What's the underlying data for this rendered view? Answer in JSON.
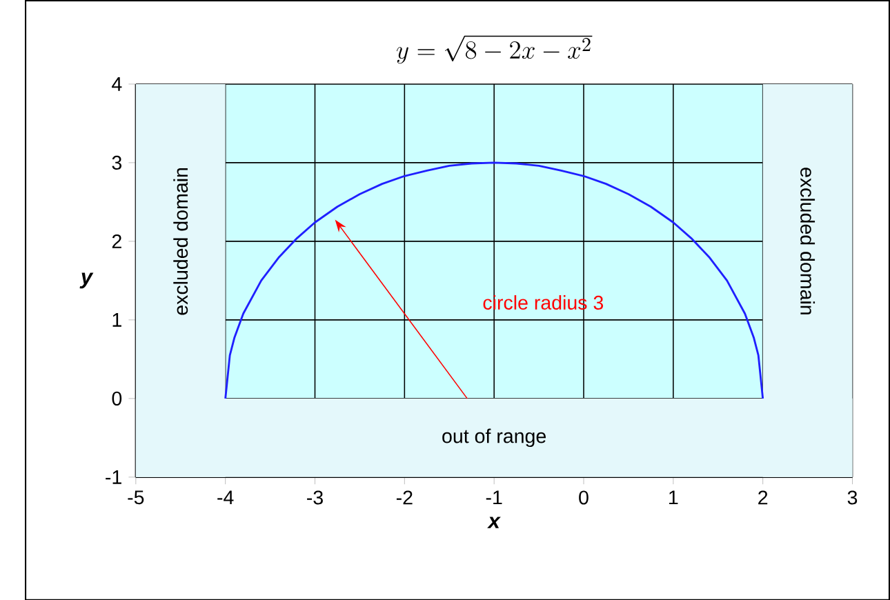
{
  "chart_data": {
    "type": "line",
    "title": "y=\\sqrt{8-2x-x^{2}}",
    "xlabel": "x",
    "ylabel": "y",
    "x": [
      -4,
      -3.95,
      -3.9,
      -3.8,
      -3.6,
      -3.4,
      -3.2,
      -3,
      -2.75,
      -2.5,
      -2.25,
      -2,
      -1.75,
      -1.5,
      -1.25,
      -1,
      -0.75,
      -0.5,
      -0.25,
      0,
      0.25,
      0.5,
      0.75,
      1,
      1.2,
      1.4,
      1.6,
      1.8,
      1.9,
      1.95,
      2
    ],
    "series": [
      {
        "color": "#1f1fff",
        "values": [
          0,
          0.55,
          0.77,
          1.08,
          1.5,
          1.8,
          2.04,
          2.24,
          2.44,
          2.6,
          2.73,
          2.83,
          2.9,
          2.96,
          2.99,
          3,
          2.99,
          2.96,
          2.9,
          2.83,
          2.73,
          2.6,
          2.44,
          2.24,
          2.04,
          1.8,
          1.5,
          1.08,
          0.77,
          0.55,
          0
        ]
      }
    ],
    "xlim": [
      -5,
      3
    ],
    "ylim": [
      -1,
      4
    ],
    "xticks": [
      -5,
      -4,
      -3,
      -2,
      -1,
      0,
      1,
      2,
      3
    ],
    "yticks": [
      -1,
      0,
      1,
      2,
      3,
      4
    ],
    "grid": true,
    "marker": "none",
    "line_style": "solid",
    "bands": [
      {
        "axis": "x",
        "from": -4,
        "to": 2,
        "color": "#ccffff"
      },
      {
        "axis": "x",
        "from": -5,
        "to": -4,
        "label": "excluded domain",
        "color": "#e4f8fb"
      },
      {
        "axis": "x",
        "from": 2,
        "to": 3,
        "label": "excluded domain",
        "color": "#e4f8fb"
      },
      {
        "axis": "y",
        "from": -1,
        "to": 0,
        "label": "out of range",
        "color": "#e4f8fb"
      }
    ],
    "annotations": [
      "circle radius 3"
    ]
  }
}
